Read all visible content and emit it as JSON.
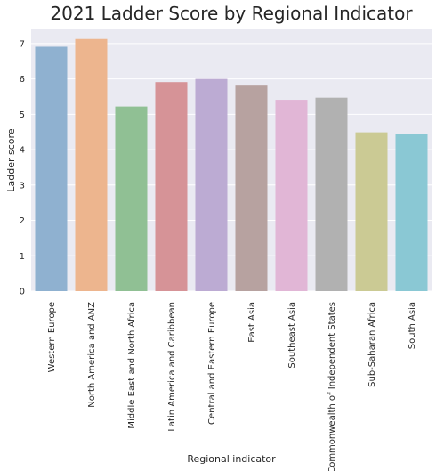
{
  "chart_data": {
    "type": "bar",
    "title": "2021 Ladder Score by  Regional Indicator",
    "xlabel": "Regional indicator",
    "ylabel": "Ladder score",
    "ylim": [
      0,
      7.4
    ],
    "yticks": [
      "0",
      "1",
      "2",
      "3",
      "4",
      "5",
      "6",
      "7"
    ],
    "grid": true,
    "background_color": "#eaeaf2",
    "categories": [
      "Western Europe",
      "North America and ANZ",
      "Middle East and North Africa",
      "Latin America and Caribbean",
      "Central and Eastern Europe",
      "East Asia",
      "Southeast Asia",
      "Commonwealth of Independent States",
      "Sub-Saharan Africa",
      "South Asia"
    ],
    "values": [
      6.91,
      7.13,
      5.22,
      5.91,
      6.0,
      5.81,
      5.41,
      5.47,
      4.49,
      4.44
    ],
    "colors": [
      "#8fb1d0",
      "#edb58e",
      "#90c094",
      "#d69397",
      "#bcabd3",
      "#b7a2a0",
      "#e1b6d6",
      "#b1b1b1",
      "#cbca94",
      "#8ac8d4"
    ]
  }
}
